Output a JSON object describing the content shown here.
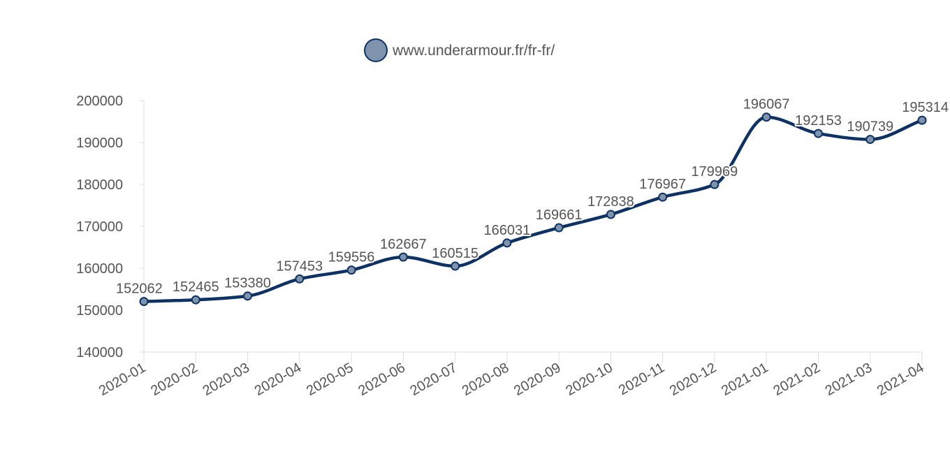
{
  "chart_data": {
    "type": "line",
    "title": "",
    "xlabel": "",
    "ylabel": "",
    "categories": [
      "2020-01",
      "2020-02",
      "2020-03",
      "2020-04",
      "2020-05",
      "2020-06",
      "2020-07",
      "2020-08",
      "2020-09",
      "2020-10",
      "2020-11",
      "2020-12",
      "2021-01",
      "2021-02",
      "2021-03",
      "2021-04"
    ],
    "series": [
      {
        "name": "www.underarmour.fr/fr-fr/",
        "values": [
          152062,
          152465,
          153380,
          157453,
          159556,
          162667,
          160515,
          166031,
          169661,
          172838,
          176967,
          179969,
          196067,
          192153,
          190739,
          195314
        ],
        "line_color": "#0d3263",
        "marker_color": "#7f93ad"
      }
    ],
    "ylim": [
      140000,
      200000
    ],
    "yticks": [
      140000,
      150000,
      160000,
      170000,
      180000,
      190000,
      200000
    ],
    "legend_position": "top-center",
    "grid": false,
    "smooth": true,
    "data_labels": true
  }
}
